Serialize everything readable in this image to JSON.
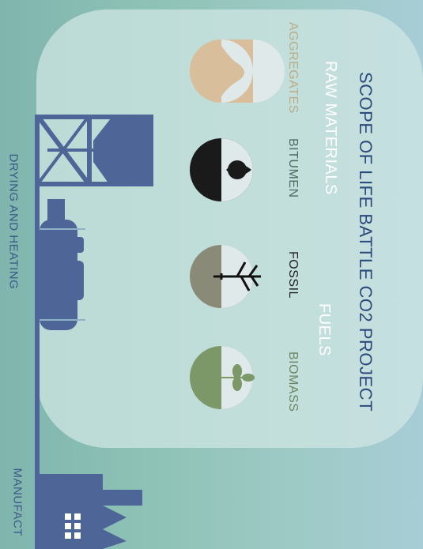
{
  "title": "SCOPE OF LIFE BATTLE CO2 PROJECT",
  "sections": {
    "raw_materials": "RAW MATERIALS",
    "fuels": "FUELS"
  },
  "items": [
    {
      "label": "AGGREGATES",
      "color": "#b9ad8a",
      "icon": "aggregates-icon"
    },
    {
      "label": "BITUMEN",
      "color": "#557466",
      "icon": "bitumen-drop-icon"
    },
    {
      "label": "FOSSIL",
      "color": "#1e1e1e",
      "icon": "fossil-tree-icon"
    },
    {
      "label": "BIOMASS",
      "color": "#6c8661",
      "icon": "biomass-sprout-icon"
    }
  ],
  "stages": {
    "drying": "DRYING AND HEATING",
    "manufacturing": "MANUFACT"
  },
  "colors": {
    "panel": "#bcdcda",
    "machinery": "#4d6597",
    "title_text": "#2c4a7b"
  }
}
